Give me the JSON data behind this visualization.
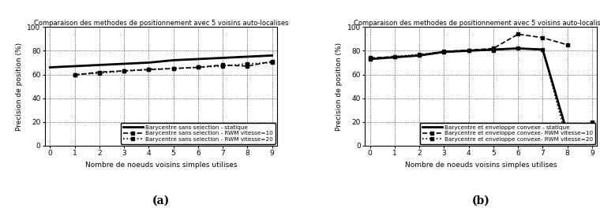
{
  "title": "Comparaison des methodes de positionnement avec 5 voisins auto-localises",
  "xlabel": "Nombre de noeuds voisins simples utilises",
  "ylabel": "Precision de position (%)",
  "xlim": [
    -0.2,
    9.2
  ],
  "ylim": [
    0,
    100
  ],
  "yticks": [
    0,
    20,
    40,
    60,
    80,
    100
  ],
  "xticks": [
    0,
    1,
    2,
    3,
    4,
    5,
    6,
    7,
    8,
    9
  ],
  "panel_a": {
    "label": "(a)",
    "legend_loc": "lower right",
    "legend_entries": [
      "Barycentre sans selection - statique",
      "Barycentre sans selection - RWM vitesse=10",
      "Barycentre sans selection - RWM vitesse=20"
    ],
    "lines": [
      {
        "label": "Barycentre sans selection - statique",
        "x": [
          0,
          1,
          2,
          3,
          4,
          5,
          6,
          7,
          8,
          9
        ],
        "y": [
          66,
          67,
          68,
          69,
          70,
          72,
          73,
          74,
          75,
          76
        ],
        "linestyle": "-",
        "color": "black",
        "linewidth": 2.0,
        "marker": null,
        "markersize": 0
      },
      {
        "label": "Barycentre sans selection - RWM vitesse=10",
        "x": [
          1,
          2,
          3,
          4,
          5,
          6,
          7,
          8,
          9
        ],
        "y": [
          59.5,
          62,
          63,
          64,
          65,
          66,
          68,
          67,
          71
        ],
        "linestyle": "--",
        "color": "black",
        "linewidth": 1.2,
        "marker": "s",
        "markersize": 3.5
      },
      {
        "label": "Barycentre sans selection - RWM vitesse=20",
        "x": [
          1,
          2,
          3,
          4,
          5,
          6,
          7,
          8,
          9
        ],
        "y": [
          60,
          61,
          63,
          64.5,
          65,
          66,
          67,
          69,
          70
        ],
        "linestyle": ":",
        "color": "black",
        "linewidth": 1.2,
        "marker": "s",
        "markersize": 3.5
      }
    ]
  },
  "panel_b": {
    "label": "(b)",
    "legend_loc": "lower right",
    "legend_entries": [
      "Barycentre et enveloppe convexe - statique",
      "Barycentre et enveloppe convexe- RWM vitesse=10",
      "Barycentre et enveloppe convexe- RWM vitesse=20"
    ],
    "lines": [
      {
        "label": "Barycentre et enveloppe convexe - statique",
        "x": [
          0,
          1,
          2,
          3,
          4,
          5,
          6,
          7,
          8
        ],
        "y": [
          73,
          74.5,
          76,
          79,
          80,
          81,
          82,
          81,
          10
        ],
        "linestyle": "-",
        "color": "black",
        "linewidth": 2.0,
        "marker": null,
        "markersize": 0
      },
      {
        "label": "Barycentre et enveloppe convexe- RWM vitesse=10",
        "x": [
          0,
          1,
          2,
          3,
          4,
          5,
          6,
          7,
          8
        ],
        "y": [
          74,
          75,
          76,
          79.5,
          80.5,
          82,
          94,
          91,
          85
        ],
        "linestyle": "--",
        "color": "black",
        "linewidth": 1.2,
        "marker": "s",
        "markersize": 3.5
      },
      {
        "label": "Barycentre et enveloppe convexe- RWM vitesse=20",
        "x": [
          0,
          1,
          2,
          3,
          4,
          5,
          6,
          7,
          8,
          9
        ],
        "y": [
          73,
          75,
          77,
          79,
          80,
          80.5,
          82,
          81,
          3,
          20
        ],
        "linestyle": ":",
        "color": "black",
        "linewidth": 1.2,
        "marker": "s",
        "markersize": 3.5
      }
    ]
  }
}
